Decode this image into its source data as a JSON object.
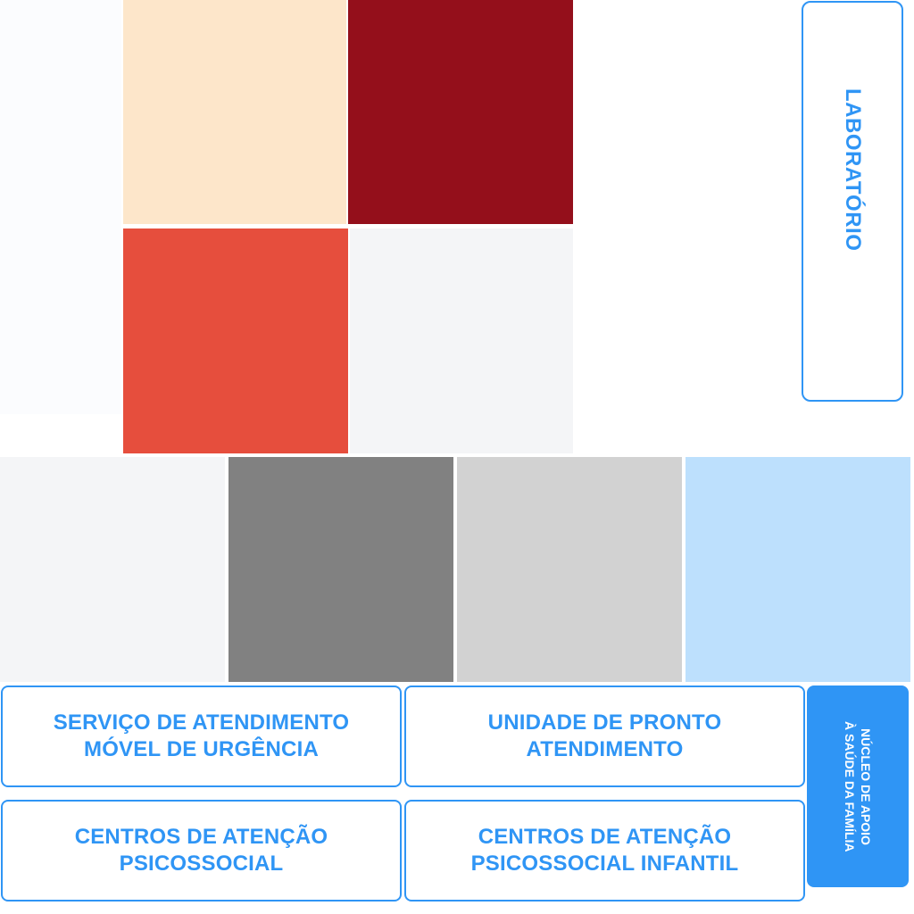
{
  "tiles": {
    "colors": {
      "peach": "#fde6ca",
      "dark_red": "#940f1b",
      "red_orange": "#e64e3d",
      "light_gray": "#f4f5f7",
      "very_light": "#fbfcfe",
      "gray": "#818181",
      "silver": "#d2d2d2",
      "light_blue": "#bde0fd"
    }
  },
  "lab_button": {
    "label": "Laboratório"
  },
  "buttons": {
    "samu": "SERVIÇO DE ATENDIMENTO\nMÓVEL DE URGÊNCIA",
    "upa": "UNIDADE DE PRONTO\nATENDIMENTO",
    "caps": "CENTROS DE ATENÇÃO\nPSICOSSOCIAL",
    "capsi": "CENTROS DE ATENÇÃO\nPSICOSSOCIAL INFANTIL"
  },
  "nasf_button": {
    "label": "NÚCLEO DE APOIO\nÀ SAÚDE DA FAMÍLIA"
  },
  "accent_color": "#2f95f5"
}
